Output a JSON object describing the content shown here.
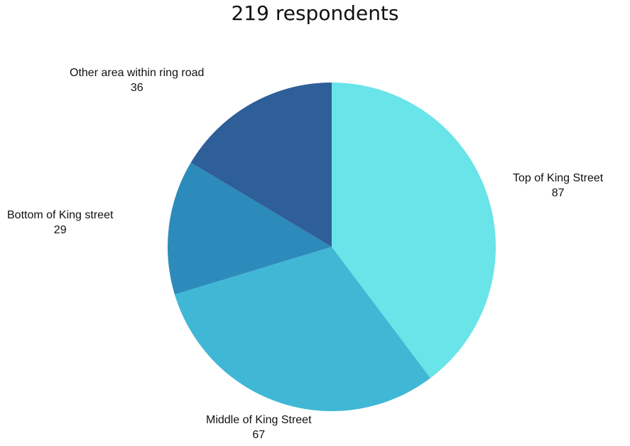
{
  "chart_data": {
    "type": "pie",
    "title": "219 respondents",
    "slices": [
      {
        "label": "Top of King Street",
        "value": 87,
        "color": "#69E4E8"
      },
      {
        "label": "Middle of King Street",
        "value": 67,
        "color": "#41B7D6"
      },
      {
        "label": "Bottom of King street",
        "value": 29,
        "color": "#2C8BBA"
      },
      {
        "label": "Other area within ring road",
        "value": 36,
        "color": "#2E5F99"
      }
    ]
  }
}
